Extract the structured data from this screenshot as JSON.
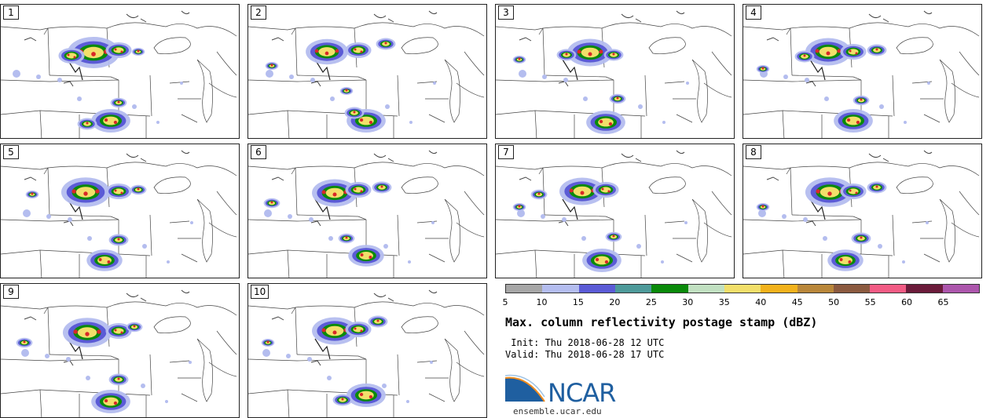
{
  "panels": [
    {
      "label": "1",
      "north": [
        [
          118,
          61,
          16
        ],
        [
          90,
          65,
          8
        ],
        [
          150,
          58,
          8
        ],
        [
          175,
          60,
          4
        ]
      ],
      "south": [
        [
          140,
          148,
          12
        ],
        [
          110,
          152,
          6
        ],
        [
          150,
          125,
          5
        ]
      ]
    },
    {
      "label": "2",
      "north": [
        [
          100,
          60,
          13
        ],
        [
          140,
          58,
          8
        ],
        [
          175,
          50,
          6
        ],
        [
          30,
          78,
          4
        ]
      ],
      "south": [
        [
          150,
          148,
          12
        ],
        [
          135,
          138,
          6
        ],
        [
          125,
          110,
          4
        ]
      ]
    },
    {
      "label": "3",
      "north": [
        [
          120,
          61,
          14
        ],
        [
          150,
          64,
          6
        ],
        [
          90,
          64,
          6
        ],
        [
          30,
          70,
          4
        ]
      ],
      "south": [
        [
          140,
          150,
          12
        ],
        [
          155,
          120,
          5
        ]
      ]
    },
    {
      "label": "4",
      "north": [
        [
          108,
          60,
          14
        ],
        [
          140,
          60,
          8
        ],
        [
          170,
          58,
          6
        ],
        [
          78,
          66,
          6
        ],
        [
          25,
          82,
          4
        ]
      ],
      "south": [
        [
          140,
          148,
          12
        ],
        [
          150,
          122,
          5
        ]
      ]
    },
    {
      "label": "5",
      "north": [
        [
          108,
          61,
          15
        ],
        [
          150,
          60,
          8
        ],
        [
          175,
          58,
          5
        ],
        [
          40,
          64,
          4
        ]
      ],
      "south": [
        [
          132,
          148,
          11
        ],
        [
          150,
          122,
          6
        ]
      ]
    },
    {
      "label": "6",
      "north": [
        [
          110,
          62,
          14
        ],
        [
          140,
          58,
          8
        ],
        [
          170,
          55,
          6
        ],
        [
          30,
          75,
          5
        ]
      ],
      "south": [
        [
          150,
          142,
          11
        ],
        [
          125,
          120,
          5
        ]
      ]
    },
    {
      "label": "7",
      "north": [
        [
          110,
          60,
          14
        ],
        [
          140,
          58,
          8
        ],
        [
          55,
          64,
          5
        ],
        [
          30,
          80,
          4
        ]
      ],
      "south": [
        [
          135,
          148,
          12
        ],
        [
          150,
          118,
          5
        ]
      ]
    },
    {
      "label": "8",
      "north": [
        [
          110,
          61,
          15
        ],
        [
          140,
          60,
          8
        ],
        [
          170,
          55,
          6
        ],
        [
          25,
          80,
          4
        ]
      ],
      "south": [
        [
          130,
          148,
          11
        ],
        [
          150,
          120,
          6
        ]
      ]
    },
    {
      "label": "9",
      "north": [
        [
          110,
          62,
          15
        ],
        [
          150,
          60,
          8
        ],
        [
          170,
          55,
          5
        ],
        [
          30,
          75,
          5
        ]
      ],
      "south": [
        [
          140,
          150,
          12
        ],
        [
          150,
          122,
          6
        ]
      ]
    },
    {
      "label": "10",
      "north": [
        [
          110,
          60,
          14
        ],
        [
          140,
          58,
          8
        ],
        [
          165,
          48,
          6
        ],
        [
          25,
          75,
          4
        ]
      ],
      "south": [
        [
          150,
          142,
          12
        ],
        [
          120,
          148,
          6
        ]
      ]
    }
  ],
  "colorbar": {
    "colors": [
      "#a6a6a6",
      "#b4bdef",
      "#5b5bd6",
      "#4e9a9a",
      "#0a8a0a",
      "#c1e0c1",
      "#f2df6a",
      "#f2b21c",
      "#b9873a",
      "#8b5a3f",
      "#f25b84",
      "#6b1b3a",
      "#ac56ac"
    ],
    "ticks": [
      "5",
      "10",
      "15",
      "20",
      "25",
      "30",
      "35",
      "40",
      "45",
      "50",
      "55",
      "60",
      "65"
    ]
  },
  "title": "Max. column reflectivity postage stamp (dBZ)",
  "init_text": " Init: Thu 2018-06-28 12 UTC",
  "valid_text": "Valid: Thu 2018-06-28 17 UTC",
  "logo": {
    "text": "NCAR",
    "site": "ensemble.ucar.edu"
  },
  "theme": {
    "map_line": "#444444",
    "cell_core": "#d82828",
    "cell_mid": "#f2df6a",
    "cell_green": "#0a8a0a",
    "cell_blue": "#5b5bd6",
    "cell_light": "#b4bdef",
    "logo_blue": "#1f5fa0"
  }
}
